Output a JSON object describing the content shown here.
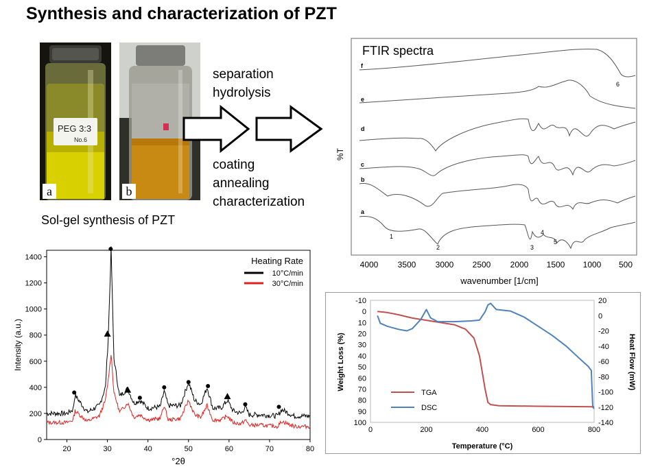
{
  "title": "Synthesis and characterization of PZT",
  "photos": {
    "a_label": "a",
    "b_label": "b",
    "a_jar_label_line1": "PEG 3:3",
    "a_jar_label_line2": "No.6"
  },
  "steps": {
    "top": [
      "separation",
      "hydrolysis"
    ],
    "bottom": [
      "coating",
      "annealing",
      "characterization"
    ]
  },
  "sol_gel_caption": "Sol-gel synthesis of PZT",
  "ftir": {
    "title": "FTIR spectra",
    "ylabel": "%T",
    "xlabel": "wavenumber [1/cm]",
    "ticks": [
      "4000",
      "3500",
      "3000",
      "2500",
      "2000",
      "1500",
      "1000",
      "500"
    ],
    "curve_labels": [
      "a",
      "b",
      "c",
      "d",
      "e",
      "f"
    ],
    "peak_labels": [
      "1",
      "2",
      "3",
      "4",
      "5",
      "6"
    ]
  },
  "chart_data": [
    {
      "type": "line",
      "title": "",
      "xlabel": "°2θ",
      "ylabel": "Intensity (a.u.)",
      "xlim": [
        15,
        80
      ],
      "ylim": [
        0,
        1450
      ],
      "xticks": [
        "20",
        "30",
        "40",
        "50",
        "60",
        "70",
        "80"
      ],
      "yticks": [
        "0",
        "200",
        "400",
        "600",
        "800",
        "1000",
        "1200",
        "1400"
      ],
      "legend_title": "Heating Rate",
      "legend_position": "top-right",
      "series": [
        {
          "name": "10°C/min",
          "color": "#000000",
          "x": [
            15,
            20,
            21.5,
            22,
            25,
            28,
            29.5,
            30.2,
            30.9,
            31.6,
            33,
            35,
            36.5,
            38,
            40,
            43,
            44,
            45,
            48,
            50,
            51.5,
            53,
            54.6,
            56,
            58,
            59.6,
            61,
            63,
            64,
            65,
            68,
            72,
            73,
            76,
            80
          ],
          "y": [
            200,
            200,
            230,
            340,
            210,
            260,
            400,
            780,
            1460,
            620,
            330,
            390,
            280,
            300,
            240,
            250,
            370,
            260,
            260,
            440,
            300,
            270,
            400,
            240,
            240,
            300,
            220,
            200,
            250,
            190,
            190,
            180,
            230,
            180,
            180
          ]
        },
        {
          "name": "30°C/min",
          "color": "#e02020",
          "x": [
            15,
            20,
            21.5,
            22,
            25,
            28,
            29.5,
            30.2,
            30.9,
            31.6,
            33,
            35,
            36.5,
            38,
            40,
            43,
            44,
            45,
            48,
            50,
            51.5,
            53,
            54.6,
            56,
            58,
            59.6,
            61,
            63,
            64,
            65,
            68,
            72,
            73,
            76,
            80
          ],
          "y": [
            130,
            130,
            150,
            220,
            140,
            180,
            300,
            460,
            660,
            360,
            210,
            280,
            170,
            190,
            150,
            160,
            260,
            150,
            160,
            300,
            190,
            170,
            260,
            150,
            150,
            180,
            130,
            120,
            150,
            110,
            110,
            100,
            140,
            100,
            100
          ]
        }
      ],
      "markers": [
        {
          "shape": "circle",
          "x": [
            21.8,
            30.8,
            38,
            44,
            50,
            54.8,
            64,
            72.3
          ],
          "y": [
            360,
            1460,
            320,
            400,
            440,
            410,
            270,
            250
          ]
        },
        {
          "shape": "triangle",
          "x": [
            30,
            35,
            59.6
          ],
          "y": [
            810,
            380,
            330
          ]
        }
      ]
    },
    {
      "type": "line",
      "title": "",
      "xlabel": "Temperature (°C)",
      "ylabel": "Weight Loss (%)",
      "y2label": "Heat Flow (mW)",
      "xlim": [
        0,
        800
      ],
      "ylim": [
        -10,
        100
      ],
      "y2lim": [
        -140,
        20
      ],
      "xticks": [
        "0",
        "200",
        "400",
        "600",
        "800"
      ],
      "yticks": [
        "-10",
        "0",
        "10",
        "20",
        "30",
        "40",
        "50",
        "60",
        "70",
        "80",
        "90",
        "100"
      ],
      "y2ticks": [
        "20",
        "0",
        "-20",
        "-40",
        "-60",
        "-80",
        "-100",
        "-120",
        "-140"
      ],
      "legend_position": "bottom-left",
      "series": [
        {
          "name": "TGA",
          "axis": "left",
          "color": "#c0504d",
          "x": [
            25,
            60,
            100,
            150,
            200,
            250,
            300,
            340,
            370,
            390,
            400,
            410,
            420,
            430,
            460,
            600,
            800
          ],
          "y": [
            0,
            1,
            3,
            6,
            8,
            10,
            12,
            16,
            24,
            40,
            55,
            70,
            82,
            84,
            85,
            85.5,
            86
          ]
        },
        {
          "name": "DSC",
          "axis": "right",
          "color": "#4f81bd",
          "x": [
            25,
            35,
            60,
            100,
            130,
            150,
            180,
            200,
            215,
            240,
            300,
            360,
            390,
            410,
            420,
            430,
            450,
            500,
            550,
            600,
            650,
            700,
            750,
            780,
            790,
            795,
            800
          ],
          "y": [
            0,
            -10,
            -14,
            -18,
            -20,
            -17,
            -5,
            8,
            -3,
            -8,
            -8,
            -7,
            -6,
            5,
            14,
            16,
            8,
            6,
            -2,
            -14,
            -26,
            -40,
            -57,
            -67,
            -72,
            -120,
            -122
          ]
        }
      ]
    }
  ]
}
